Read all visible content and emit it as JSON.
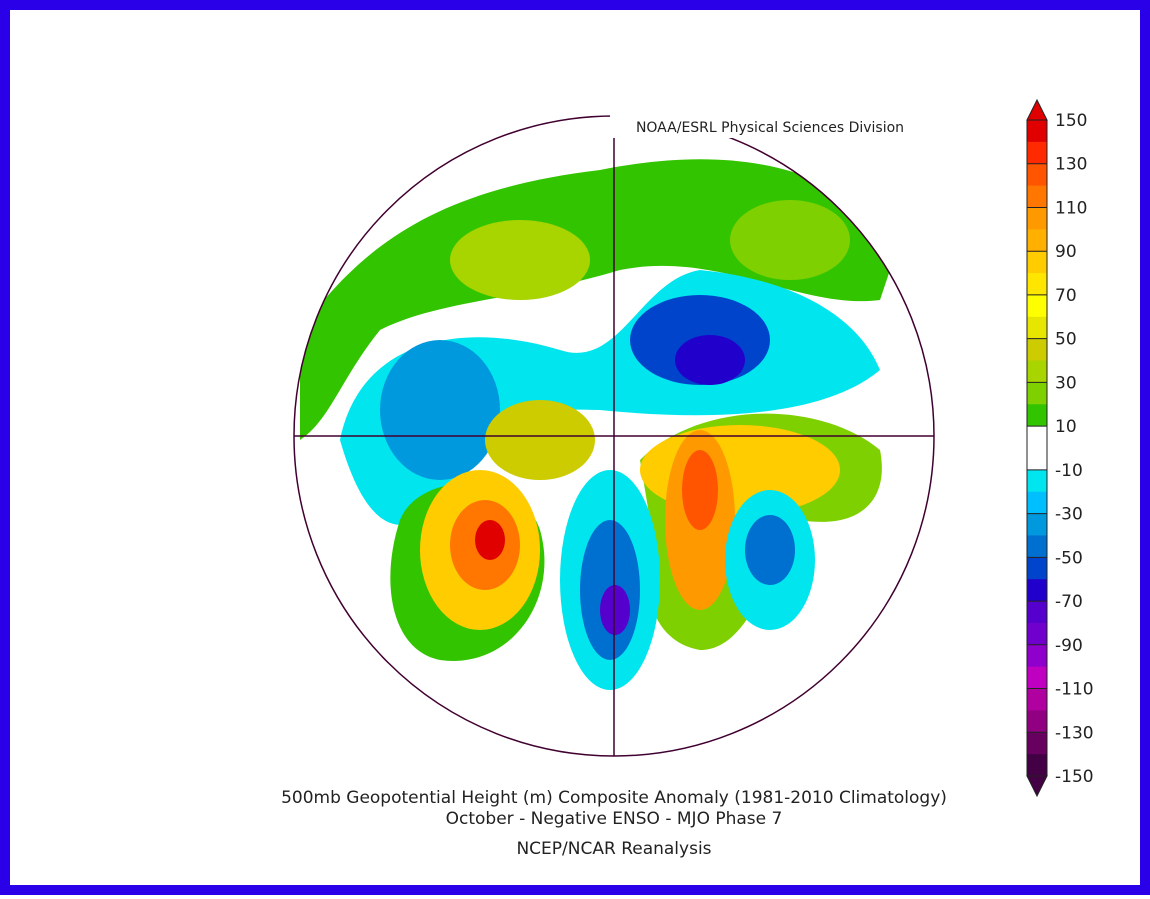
{
  "header": {
    "credit": "NOAA/ESRL Physical Sciences Division"
  },
  "footer": {
    "title": "500mb Geopotential Height (m) Composite Anomaly (1981-2010 Climatology)",
    "subtitle": "October - Negative ENSO - MJO Phase 7",
    "source": "NCEP/NCAR Reanalysis"
  },
  "colorbar": {
    "ticks": [
      150,
      130,
      110,
      90,
      70,
      50,
      30,
      10,
      -10,
      -30,
      -50,
      -70,
      -90,
      -110,
      -130,
      -150
    ],
    "colors": [
      "#e00000",
      "#ff2a00",
      "#ff5500",
      "#ff7700",
      "#ff9900",
      "#ffb000",
      "#ffcc00",
      "#ffe600",
      "#ffff00",
      "#e6e600",
      "#cccc00",
      "#a8d400",
      "#7fd000",
      "#33c400",
      "#ffffff",
      "#ffffff",
      "#00e5ee",
      "#00bfff",
      "#0099dd",
      "#0070d0",
      "#0044cc",
      "#2200cc",
      "#5500cc",
      "#7000cc",
      "#9000cc",
      "#c000c0",
      "#b000a0",
      "#900080",
      "#680060",
      "#440044"
    ]
  }
}
